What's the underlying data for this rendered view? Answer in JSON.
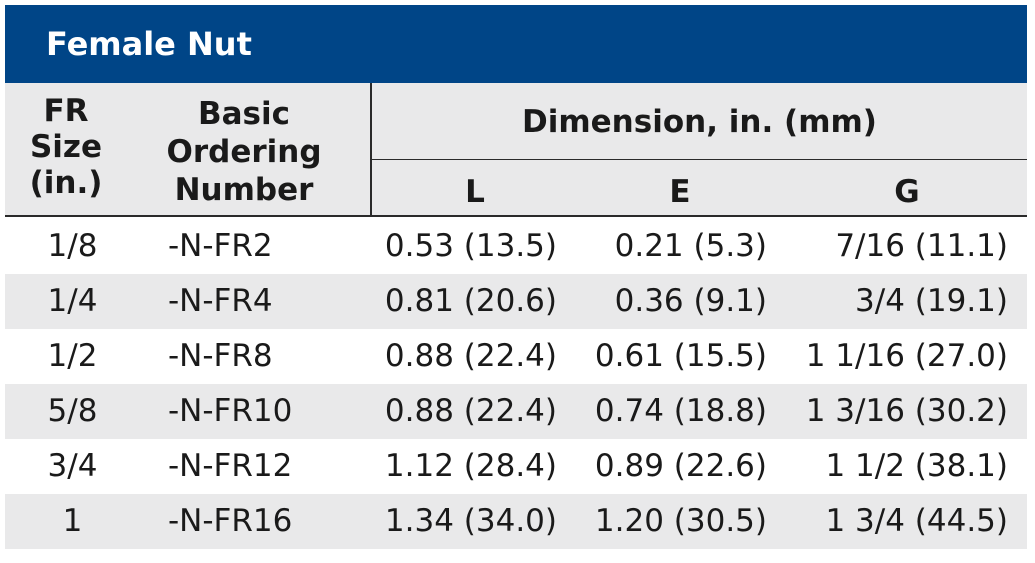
{
  "title": "Female Nut",
  "headers": {
    "fr_size": [
      "FR",
      "Size",
      "(in.)"
    ],
    "basic_ordering": [
      "Basic",
      "Ordering",
      "Number"
    ],
    "dimension": "Dimension, in. (mm)",
    "L": "L",
    "E": "E",
    "G": "G"
  },
  "rows": [
    {
      "size": "1/8",
      "number": "-N-FR2",
      "L": "0.53 (13.5)",
      "E": "0.21 (5.3)",
      "G": "7/16 (11.1)"
    },
    {
      "size": "1/4",
      "number": "-N-FR4",
      "L": "0.81 (20.6)",
      "E": "0.36 (9.1)",
      "G": "3/4 (19.1)"
    },
    {
      "size": "1/2",
      "number": "-N-FR8",
      "L": "0.88 (22.4)",
      "E": "0.61 (15.5)",
      "G": "1 1/16 (27.0)"
    },
    {
      "size": "5/8",
      "number": "-N-FR10",
      "L": "0.88 (22.4)",
      "E": "0.74 (18.8)",
      "G": "1 3/16 (30.2)"
    },
    {
      "size": "3/4",
      "number": "-N-FR12",
      "L": "1.12 (28.4)",
      "E": "0.89 (22.6)",
      "G": "1 1/2 (38.1)"
    },
    {
      "size": "1",
      "number": "-N-FR16",
      "L": "1.34 (34.0)",
      "E": "1.20 (30.5)",
      "G": "1 3/4 (44.5)"
    }
  ],
  "colors": {
    "title_bg": "#004587",
    "header_bg": "#e9e9ea",
    "alt_row_bg": "#e9e9ea"
  }
}
